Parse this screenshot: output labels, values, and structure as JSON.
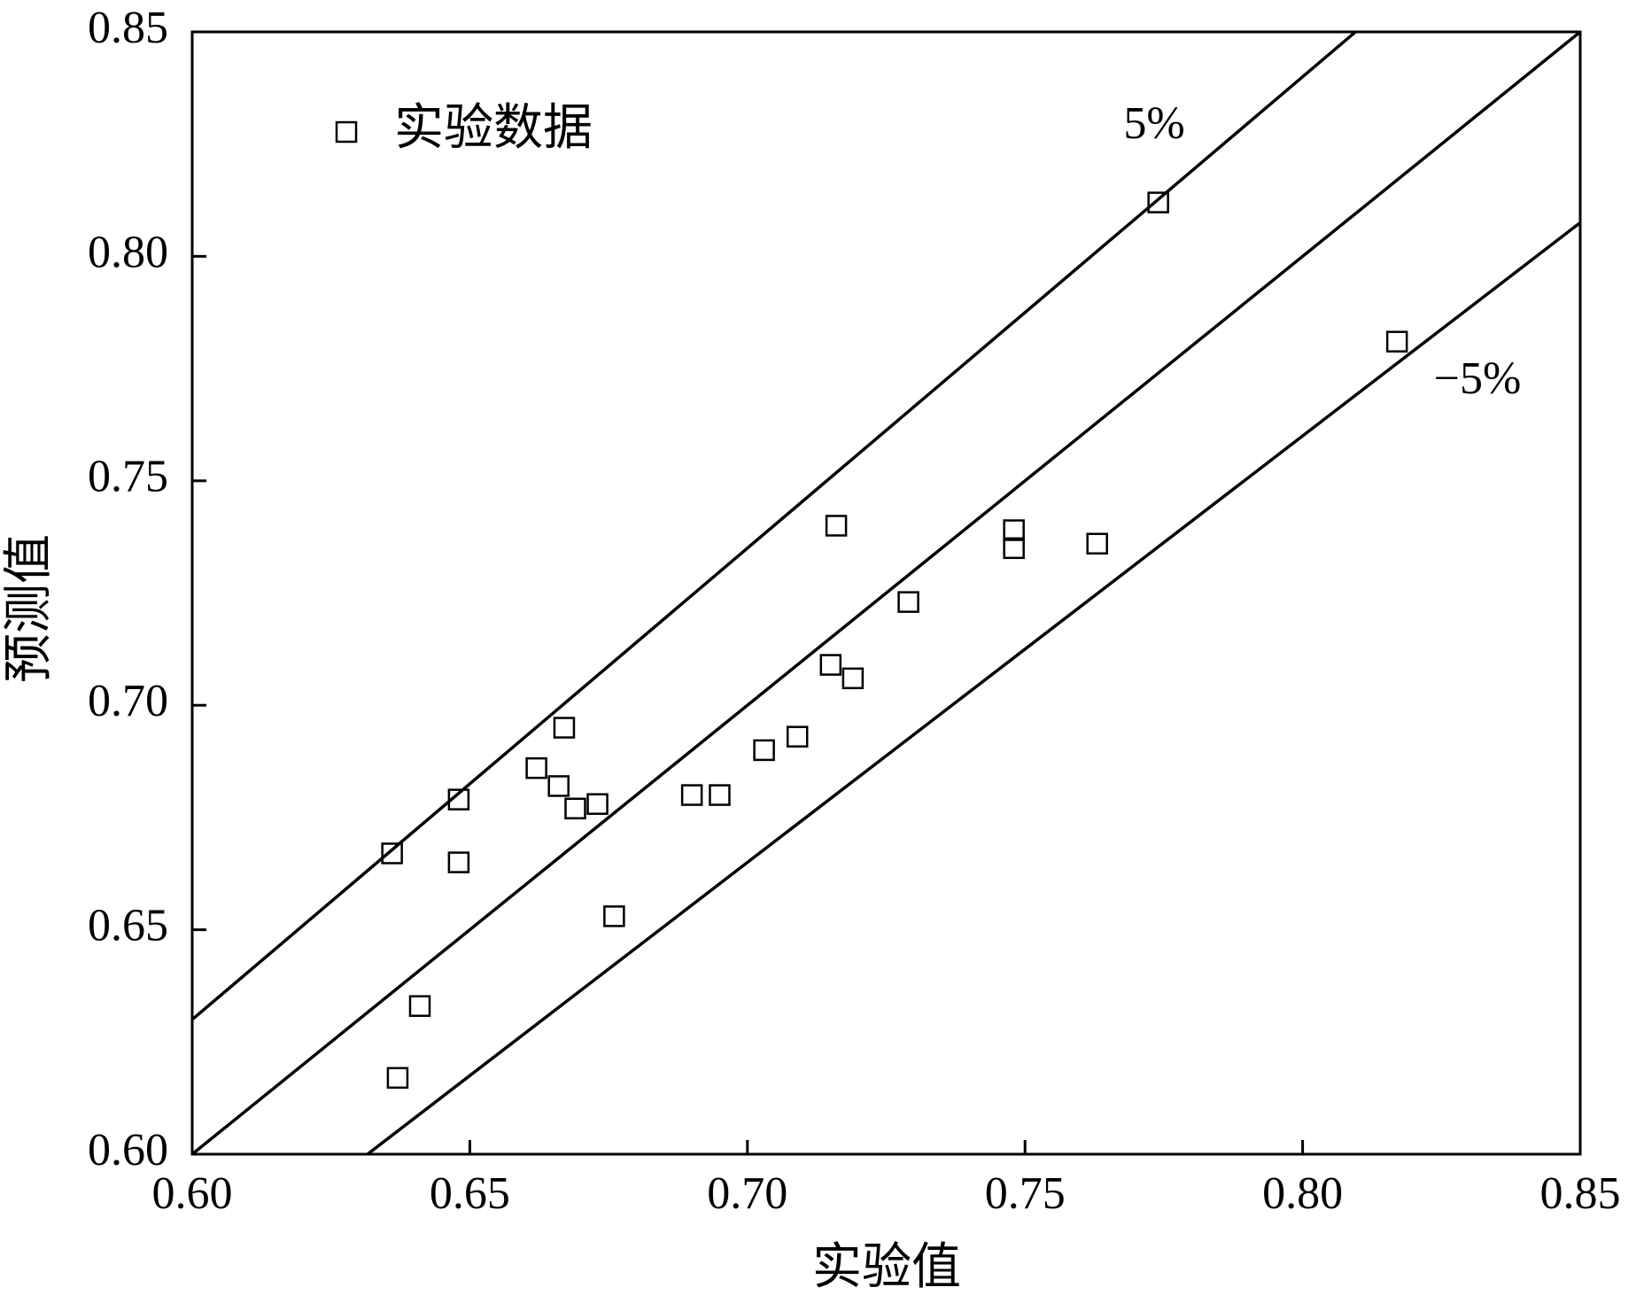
{
  "chart_data": {
    "type": "scatter",
    "x_label": "实验值",
    "y_label": "预测值",
    "series": [
      {
        "name": "实验数据",
        "color": "#000000",
        "x": [
          0.636,
          0.637,
          0.641,
          0.648,
          0.648,
          0.662,
          0.666,
          0.667,
          0.669,
          0.673,
          0.676,
          0.69,
          0.695,
          0.703,
          0.709,
          0.715,
          0.716,
          0.719,
          0.729,
          0.748,
          0.748,
          0.763,
          0.774,
          0.817
        ],
        "values": [
          0.667,
          0.617,
          0.633,
          0.679,
          0.665,
          0.686,
          0.682,
          0.695,
          0.677,
          0.678,
          0.653,
          0.68,
          0.68,
          0.69,
          0.693,
          0.709,
          0.74,
          0.706,
          0.723,
          0.739,
          0.735,
          0.736,
          0.812,
          0.781
        ]
      }
    ],
    "deviation_lines": [
      {
        "label": "5%",
        "value": 5
      },
      {
        "value": 0
      },
      {
        "label": "−5%",
        "value": -5
      }
    ],
    "xlim": [
      0.6,
      0.85
    ],
    "xticks": [
      {
        "value": 0.6,
        "label": "0.60"
      },
      0.65,
      {
        "value": 0.7,
        "label": "0.70"
      },
      0.75,
      {
        "value": 0.8,
        "label": "0.80"
      },
      0.85
    ],
    "ylim": [
      0.6,
      0.85
    ],
    "yticks": [
      {
        "value": 0.6,
        "label": "0.60"
      },
      0.65,
      {
        "value": 0.7,
        "label": "0.70"
      },
      0.75,
      {
        "value": 0.8,
        "label": "0.80"
      },
      0.85
    ],
    "legend": "upper left"
  }
}
